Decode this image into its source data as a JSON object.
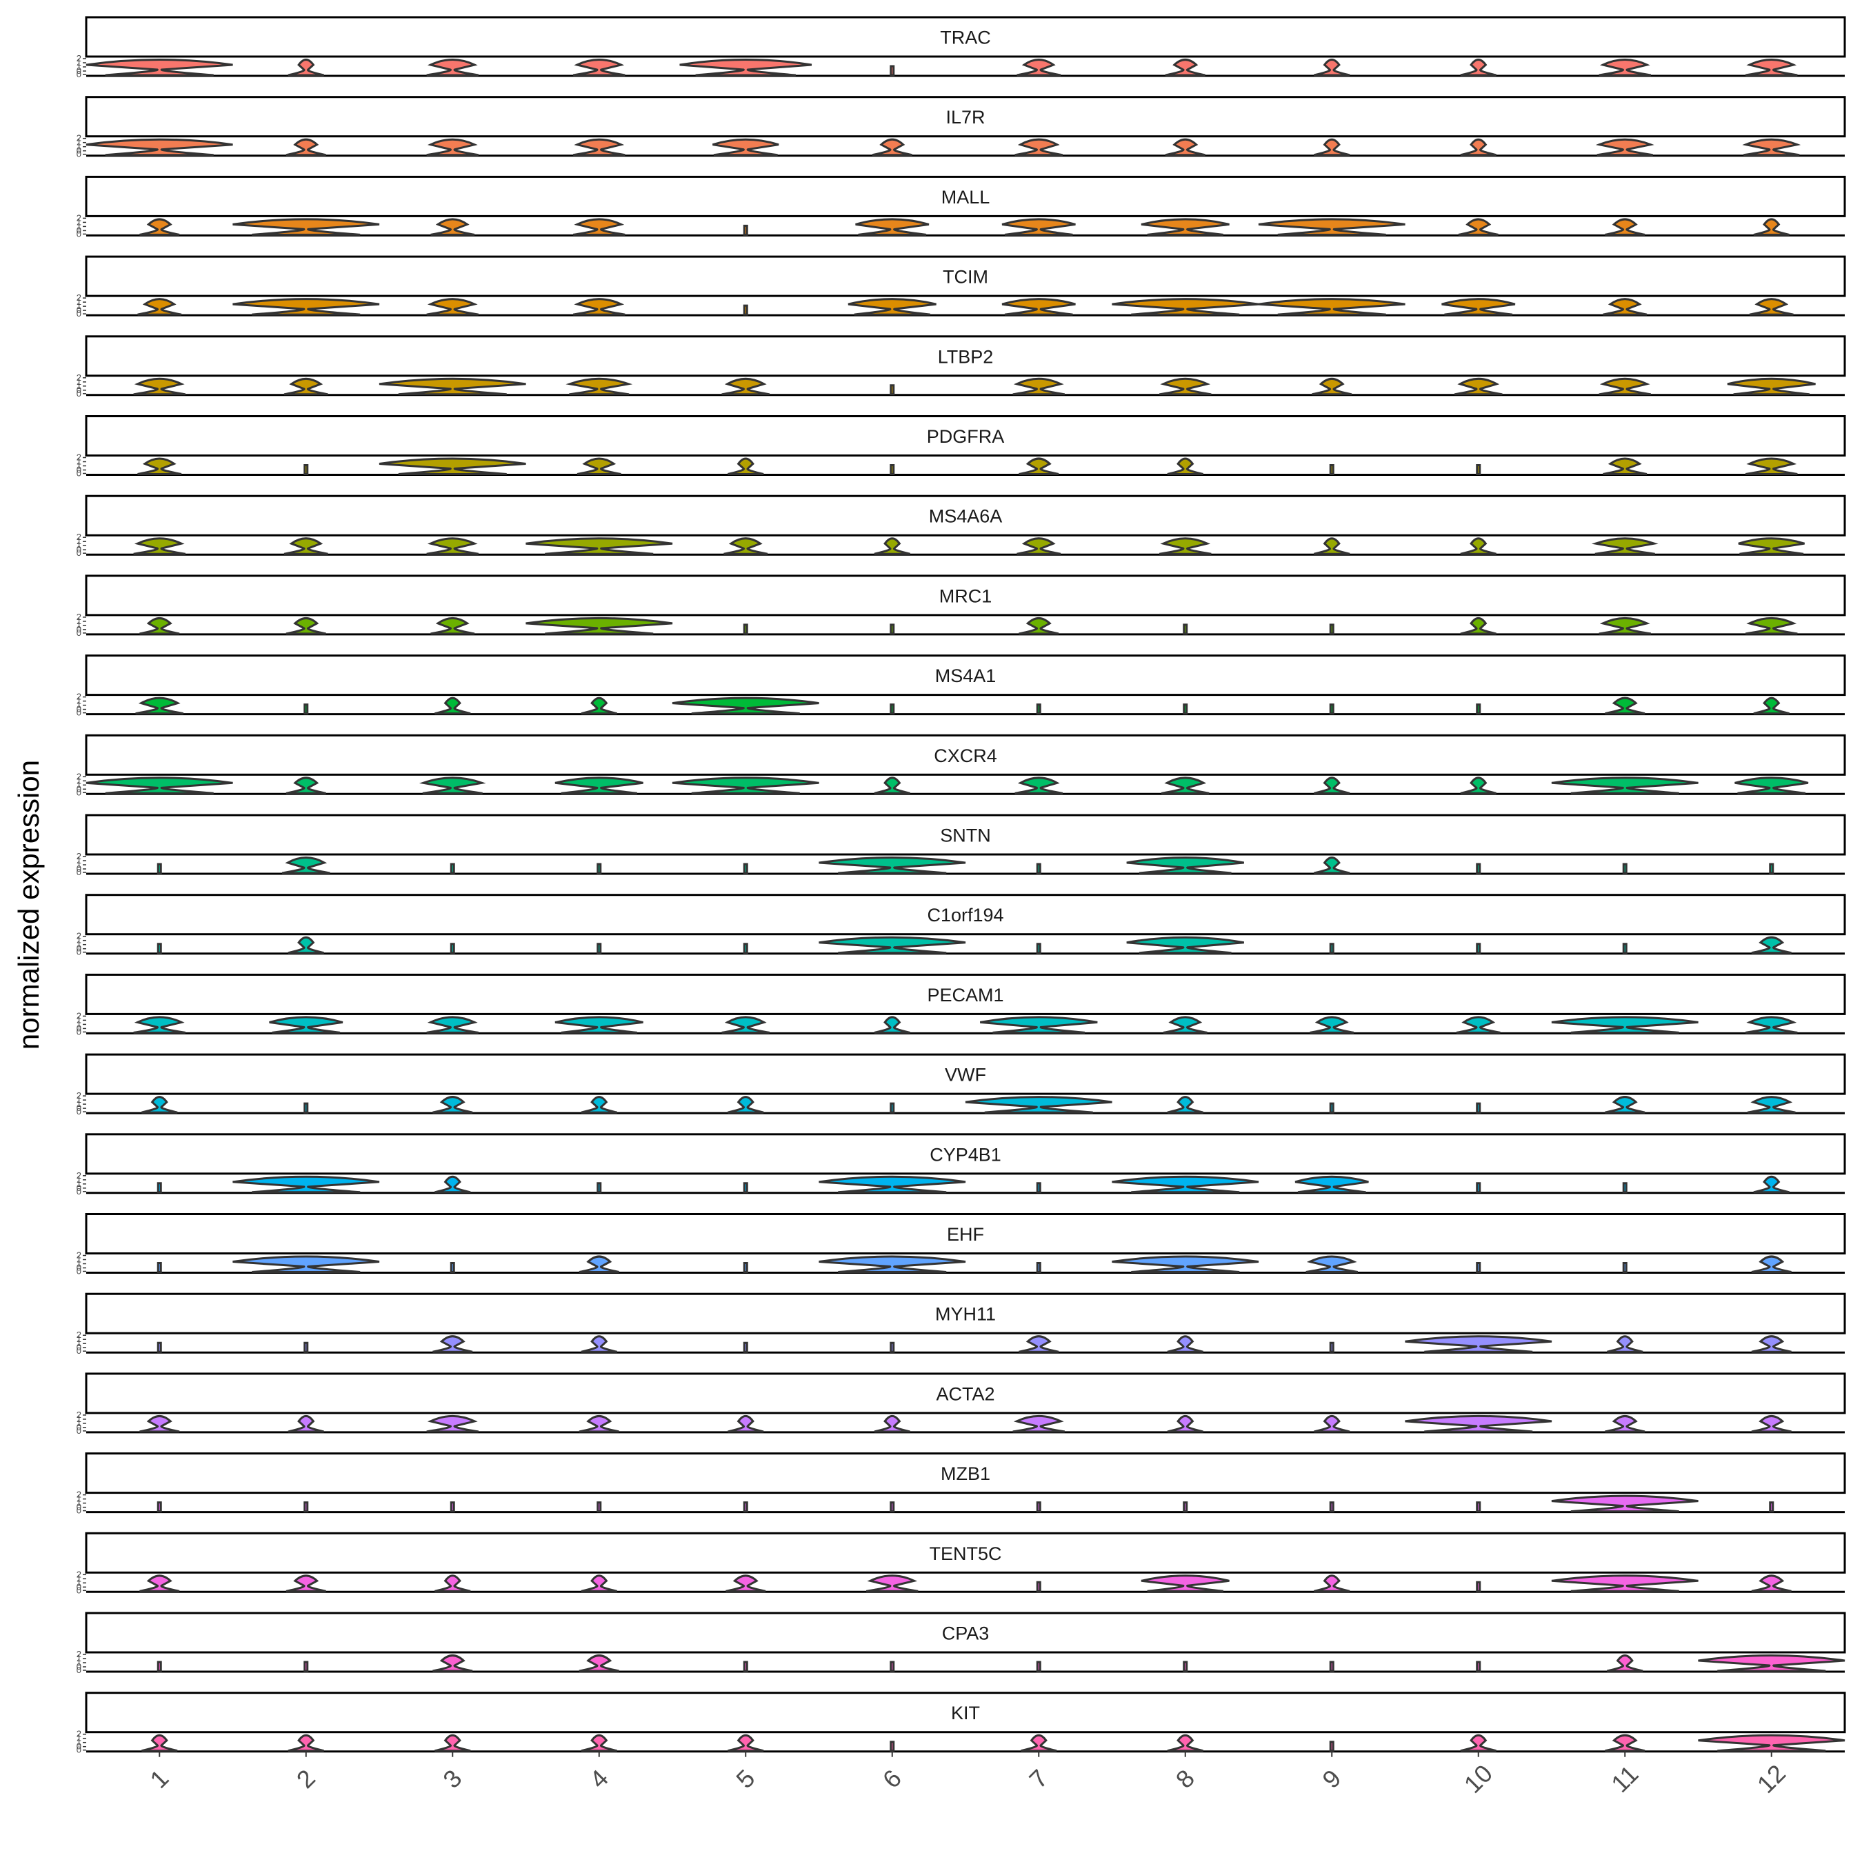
{
  "chart_data": {
    "type": "violin",
    "ylabel": "normalized expression",
    "categories": [
      "1",
      "2",
      "3",
      "4",
      "5",
      "6",
      "7",
      "8",
      "9",
      "10",
      "11",
      "12"
    ],
    "yticks": [
      "0",
      "0",
      "1",
      "1",
      "2"
    ],
    "genes": [
      {
        "name": "TRAC",
        "color": "#F8766D",
        "values": [
          1.0,
          0.1,
          0.3,
          0.3,
          0.9,
          0.05,
          0.2,
          0.15,
          0.1,
          0.1,
          0.3,
          0.3
        ]
      },
      {
        "name": "IL7R",
        "color": "#F27D52",
        "values": [
          1.0,
          0.15,
          0.3,
          0.3,
          0.45,
          0.15,
          0.25,
          0.15,
          0.1,
          0.1,
          0.35,
          0.35
        ]
      },
      {
        "name": "MALL",
        "color": "#E7861B",
        "values": [
          0.15,
          1.0,
          0.2,
          0.3,
          0.05,
          0.5,
          0.5,
          0.6,
          1.0,
          0.15,
          0.15,
          0.1
        ]
      },
      {
        "name": "TCIM",
        "color": "#DB8E00",
        "values": [
          0.2,
          1.0,
          0.3,
          0.3,
          0.05,
          0.6,
          0.5,
          1.0,
          1.0,
          0.5,
          0.2,
          0.2
        ]
      },
      {
        "name": "LTBP2",
        "color": "#C99800",
        "values": [
          0.3,
          0.2,
          1.0,
          0.4,
          0.25,
          0.05,
          0.3,
          0.3,
          0.15,
          0.25,
          0.3,
          0.6
        ]
      },
      {
        "name": "PDGFRA",
        "color": "#B3A000",
        "values": [
          0.2,
          0.05,
          1.0,
          0.2,
          0.1,
          0.05,
          0.15,
          0.1,
          0.05,
          0.05,
          0.2,
          0.3
        ]
      },
      {
        "name": "MS4A6A",
        "color": "#96A900",
        "values": [
          0.3,
          0.2,
          0.3,
          1.0,
          0.2,
          0.1,
          0.2,
          0.3,
          0.1,
          0.1,
          0.4,
          0.45
        ]
      },
      {
        "name": "MRC1",
        "color": "#6BB100",
        "values": [
          0.15,
          0.15,
          0.2,
          1.0,
          0.05,
          0.05,
          0.15,
          0.05,
          0.05,
          0.1,
          0.3,
          0.3
        ]
      },
      {
        "name": "MS4A1",
        "color": "#00BA38",
        "values": [
          0.25,
          0.05,
          0.1,
          0.1,
          1.0,
          0.05,
          0.05,
          0.05,
          0.05,
          0.05,
          0.15,
          0.1
        ]
      },
      {
        "name": "CXCR4",
        "color": "#00BE67",
        "values": [
          1.0,
          0.15,
          0.4,
          0.6,
          1.0,
          0.1,
          0.25,
          0.25,
          0.1,
          0.1,
          1.0,
          0.5
        ]
      },
      {
        "name": "SNTN",
        "color": "#00C08B",
        "values": [
          0.05,
          0.25,
          0.05,
          0.05,
          0.05,
          1.0,
          0.05,
          0.8,
          0.1,
          0.05,
          0.05,
          0.05
        ]
      },
      {
        "name": "C1orf194",
        "color": "#00C1A9",
        "values": [
          0.05,
          0.1,
          0.05,
          0.05,
          0.05,
          1.0,
          0.05,
          0.8,
          0.05,
          0.05,
          0.05,
          0.15
        ]
      },
      {
        "name": "PECAM1",
        "color": "#00BFC4",
        "values": [
          0.3,
          0.5,
          0.3,
          0.6,
          0.25,
          0.1,
          0.8,
          0.2,
          0.2,
          0.2,
          1.0,
          0.3
        ]
      },
      {
        "name": "VWF",
        "color": "#00BBDA",
        "values": [
          0.1,
          0.05,
          0.15,
          0.1,
          0.1,
          0.05,
          1.0,
          0.1,
          0.05,
          0.05,
          0.15,
          0.25
        ]
      },
      {
        "name": "CYP4B1",
        "color": "#00B4EF",
        "values": [
          0.05,
          1.0,
          0.1,
          0.05,
          0.05,
          1.0,
          0.05,
          1.0,
          0.5,
          0.05,
          0.05,
          0.1
        ]
      },
      {
        "name": "EHF",
        "color": "#61A4FF",
        "values": [
          0.05,
          1.0,
          0.05,
          0.15,
          0.05,
          1.0,
          0.05,
          1.0,
          0.3,
          0.05,
          0.05,
          0.15
        ]
      },
      {
        "name": "MYH11",
        "color": "#9590FF",
        "values": [
          0.05,
          0.05,
          0.15,
          0.1,
          0.05,
          0.05,
          0.15,
          0.1,
          0.05,
          1.0,
          0.1,
          0.15
        ]
      },
      {
        "name": "ACTA2",
        "color": "#C77CFF",
        "values": [
          0.15,
          0.1,
          0.3,
          0.15,
          0.1,
          0.1,
          0.3,
          0.1,
          0.1,
          1.0,
          0.15,
          0.15
        ]
      },
      {
        "name": "MZB1",
        "color": "#E76BF3",
        "values": [
          0.05,
          0.05,
          0.05,
          0.05,
          0.05,
          0.05,
          0.05,
          0.05,
          0.05,
          0.05,
          1.0,
          0.05
        ]
      },
      {
        "name": "TENT5C",
        "color": "#F564E3",
        "values": [
          0.15,
          0.15,
          0.1,
          0.1,
          0.15,
          0.3,
          0.05,
          0.6,
          0.1,
          0.05,
          1.0,
          0.15
        ]
      },
      {
        "name": "CPA3",
        "color": "#FD61D1",
        "values": [
          0.05,
          0.05,
          0.15,
          0.15,
          0.05,
          0.05,
          0.05,
          0.05,
          0.05,
          0.05,
          0.1,
          1.0
        ]
      },
      {
        "name": "KIT",
        "color": "#FF64B0",
        "values": [
          0.1,
          0.1,
          0.1,
          0.1,
          0.1,
          0.05,
          0.1,
          0.1,
          0.05,
          0.1,
          0.15,
          1.0
        ]
      }
    ]
  }
}
